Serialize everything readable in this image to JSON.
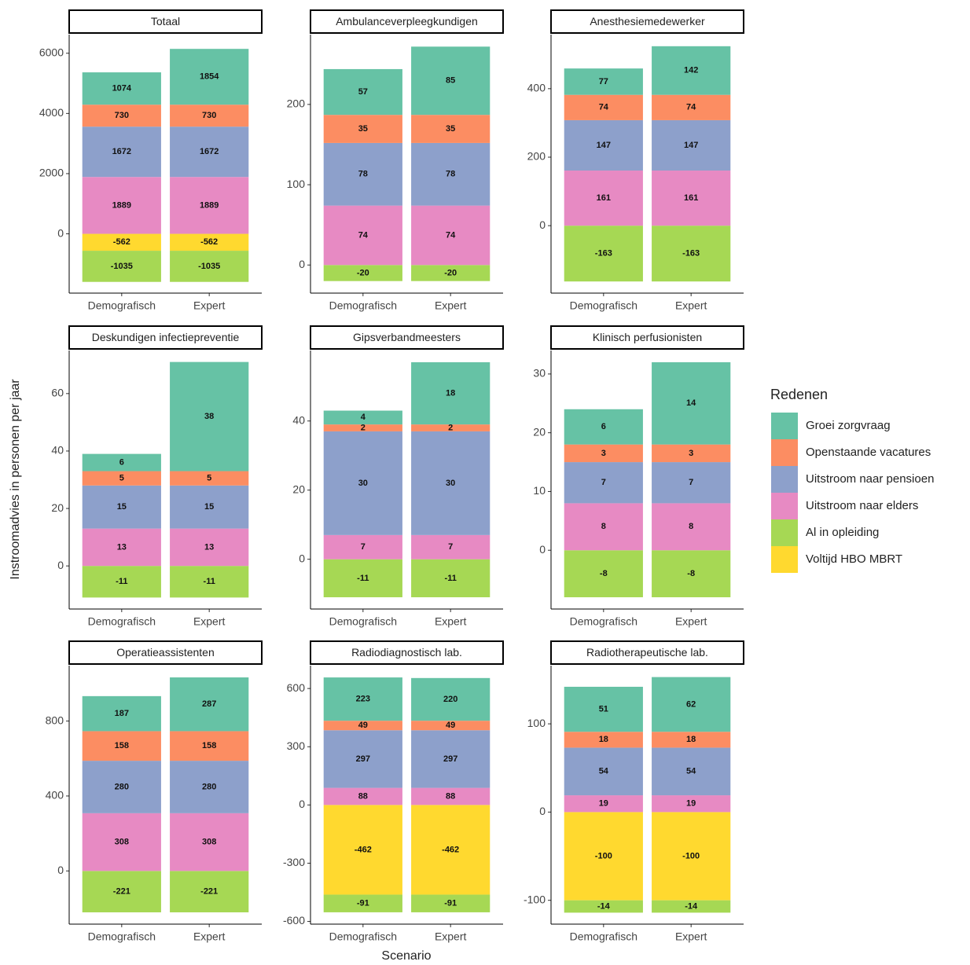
{
  "y_label": "Instroomadvies in personen per jaar",
  "x_label": "Scenario",
  "legend_title": "Redenen",
  "chart_data": [
    {
      "type": "bar",
      "stacked": true,
      "title": "Totaal",
      "categories": [
        "Demografisch",
        "Expert"
      ],
      "ylim": [
        -1970,
        6620
      ],
      "yticks": [
        0,
        2000,
        4000,
        6000
      ],
      "series": [
        {
          "name": "Groei zorgvraag",
          "color": "#66c2a5",
          "values": [
            1074,
            1854
          ]
        },
        {
          "name": "Openstaande vacatures",
          "color": "#fc8d62",
          "values": [
            730,
            730
          ]
        },
        {
          "name": "Uitstroom naar pensioen",
          "color": "#8da0cb",
          "values": [
            1672,
            1672
          ]
        },
        {
          "name": "Uitstroom naar elders",
          "color": "#e78ac3",
          "values": [
            1889,
            1889
          ]
        },
        {
          "name": "Al in opleiding",
          "color": "#a6d854",
          "values": [
            -1035,
            -1035
          ]
        },
        {
          "name": "Voltijd HBO MBRT",
          "color": "#ffd92f",
          "values": [
            -562,
            -562
          ]
        }
      ]
    },
    {
      "type": "bar",
      "stacked": true,
      "title": "Ambulanceverpleegkundigen",
      "categories": [
        "Demografisch",
        "Expert"
      ],
      "ylim": [
        -35,
        287
      ],
      "yticks": [
        0,
        100,
        200
      ],
      "series": [
        {
          "name": "Groei zorgvraag",
          "color": "#66c2a5",
          "values": [
            57,
            85
          ]
        },
        {
          "name": "Openstaande vacatures",
          "color": "#fc8d62",
          "values": [
            35,
            35
          ]
        },
        {
          "name": "Uitstroom naar pensioen",
          "color": "#8da0cb",
          "values": [
            78,
            78
          ]
        },
        {
          "name": "Uitstroom naar elders",
          "color": "#e78ac3",
          "values": [
            74,
            74
          ]
        },
        {
          "name": "Al in opleiding",
          "color": "#a6d854",
          "values": [
            -20,
            -20
          ]
        },
        {
          "name": "Voltijd HBO MBRT",
          "color": "#ffd92f",
          "values": [
            null,
            null
          ]
        }
      ]
    },
    {
      "type": "bar",
      "stacked": true,
      "title": "Anesthesiemedewerker",
      "categories": [
        "Demografisch",
        "Expert"
      ],
      "ylim": [
        -197,
        558
      ],
      "yticks": [
        0,
        200,
        400
      ],
      "series": [
        {
          "name": "Groei zorgvraag",
          "color": "#66c2a5",
          "values": [
            77,
            142
          ]
        },
        {
          "name": "Openstaande vacatures",
          "color": "#fc8d62",
          "values": [
            74,
            74
          ]
        },
        {
          "name": "Uitstroom naar pensioen",
          "color": "#8da0cb",
          "values": [
            147,
            147
          ]
        },
        {
          "name": "Uitstroom naar elders",
          "color": "#e78ac3",
          "values": [
            161,
            161
          ]
        },
        {
          "name": "Al in opleiding",
          "color": "#a6d854",
          "values": [
            -163,
            -163
          ]
        },
        {
          "name": "Voltijd HBO MBRT",
          "color": "#ffd92f",
          "values": [
            null,
            null
          ]
        }
      ]
    },
    {
      "type": "bar",
      "stacked": true,
      "title": "Deskundigen infectiepreventie",
      "categories": [
        "Demografisch",
        "Expert"
      ],
      "ylim": [
        -15,
        75
      ],
      "yticks": [
        0,
        20,
        40,
        60
      ],
      "series": [
        {
          "name": "Groei zorgvraag",
          "color": "#66c2a5",
          "values": [
            6,
            38
          ]
        },
        {
          "name": "Openstaande vacatures",
          "color": "#fc8d62",
          "values": [
            5,
            5
          ]
        },
        {
          "name": "Uitstroom naar pensioen",
          "color": "#8da0cb",
          "values": [
            15,
            15
          ]
        },
        {
          "name": "Uitstroom naar elders",
          "color": "#e78ac3",
          "values": [
            13,
            13
          ]
        },
        {
          "name": "Al in opleiding",
          "color": "#a6d854",
          "values": [
            -11,
            -11
          ]
        },
        {
          "name": "Voltijd HBO MBRT",
          "color": "#ffd92f",
          "values": [
            null,
            null
          ]
        }
      ]
    },
    {
      "type": "bar",
      "stacked": true,
      "title": "Gipsverbandmeesters",
      "categories": [
        "Demografisch",
        "Expert"
      ],
      "ylim": [
        -14.4,
        60.4
      ],
      "yticks": [
        0,
        20,
        40
      ],
      "series": [
        {
          "name": "Groei zorgvraag",
          "color": "#66c2a5",
          "values": [
            4,
            18
          ]
        },
        {
          "name": "Openstaande vacatures",
          "color": "#fc8d62",
          "values": [
            2,
            2
          ]
        },
        {
          "name": "Uitstroom naar pensioen",
          "color": "#8da0cb",
          "values": [
            30,
            30
          ]
        },
        {
          "name": "Uitstroom naar elders",
          "color": "#e78ac3",
          "values": [
            7,
            7
          ]
        },
        {
          "name": "Al in opleiding",
          "color": "#a6d854",
          "values": [
            -11,
            -11
          ]
        },
        {
          "name": "Voltijd HBO MBRT",
          "color": "#ffd92f",
          "values": [
            null,
            null
          ]
        }
      ]
    },
    {
      "type": "bar",
      "stacked": true,
      "title": "Klinisch perfusionisten",
      "categories": [
        "Demografisch",
        "Expert"
      ],
      "ylim": [
        -10,
        34
      ],
      "yticks": [
        0,
        10,
        20,
        30
      ],
      "series": [
        {
          "name": "Groei zorgvraag",
          "color": "#66c2a5",
          "values": [
            6,
            14
          ]
        },
        {
          "name": "Openstaande vacatures",
          "color": "#fc8d62",
          "values": [
            3,
            3
          ]
        },
        {
          "name": "Uitstroom naar pensioen",
          "color": "#8da0cb",
          "values": [
            7,
            7
          ]
        },
        {
          "name": "Uitstroom naar elders",
          "color": "#e78ac3",
          "values": [
            8,
            8
          ]
        },
        {
          "name": "Al in opleiding",
          "color": "#a6d854",
          "values": [
            -8,
            -8
          ]
        },
        {
          "name": "Voltijd HBO MBRT",
          "color": "#ffd92f",
          "values": [
            null,
            null
          ]
        }
      ]
    },
    {
      "type": "bar",
      "stacked": true,
      "title": "Operatieassistenten",
      "categories": [
        "Demografisch",
        "Expert"
      ],
      "ylim": [
        -284,
        1096
      ],
      "yticks": [
        0,
        400,
        800
      ],
      "series": [
        {
          "name": "Groei zorgvraag",
          "color": "#66c2a5",
          "values": [
            187,
            287
          ]
        },
        {
          "name": "Openstaande vacatures",
          "color": "#fc8d62",
          "values": [
            158,
            158
          ]
        },
        {
          "name": "Uitstroom naar pensioen",
          "color": "#8da0cb",
          "values": [
            280,
            280
          ]
        },
        {
          "name": "Uitstroom naar elders",
          "color": "#e78ac3",
          "values": [
            308,
            308
          ]
        },
        {
          "name": "Al in opleiding",
          "color": "#a6d854",
          "values": [
            -221,
            -221
          ]
        },
        {
          "name": "Voltijd HBO MBRT",
          "color": "#ffd92f",
          "values": [
            null,
            null
          ]
        }
      ]
    },
    {
      "type": "bar",
      "stacked": true,
      "title": "Radiodiagnostisch lab.",
      "categories": [
        "Demografisch",
        "Expert"
      ],
      "ylim": [
        -614,
        718
      ],
      "yticks": [
        -600,
        -300,
        0,
        300,
        600
      ],
      "series": [
        {
          "name": "Groei zorgvraag",
          "color": "#66c2a5",
          "values": [
            223,
            220
          ]
        },
        {
          "name": "Openstaande vacatures",
          "color": "#fc8d62",
          "values": [
            49,
            49
          ]
        },
        {
          "name": "Uitstroom naar pensioen",
          "color": "#8da0cb",
          "values": [
            297,
            297
          ]
        },
        {
          "name": "Uitstroom naar elders",
          "color": "#e78ac3",
          "values": [
            88,
            88
          ]
        },
        {
          "name": "Al in opleiding",
          "color": "#a6d854",
          "values": [
            -91,
            -91
          ]
        },
        {
          "name": "Voltijd HBO MBRT",
          "color": "#ffd92f",
          "values": [
            -462,
            -462
          ]
        }
      ]
    },
    {
      "type": "bar",
      "stacked": true,
      "title": "Radiotherapeutische lab.",
      "categories": [
        "Demografisch",
        "Expert"
      ],
      "ylim": [
        -127,
        166
      ],
      "yticks": [
        -100,
        0,
        100
      ],
      "series": [
        {
          "name": "Groei zorgvraag",
          "color": "#66c2a5",
          "values": [
            51,
            62
          ]
        },
        {
          "name": "Openstaande vacatures",
          "color": "#fc8d62",
          "values": [
            18,
            18
          ]
        },
        {
          "name": "Uitstroom naar pensioen",
          "color": "#8da0cb",
          "values": [
            54,
            54
          ]
        },
        {
          "name": "Uitstroom naar elders",
          "color": "#e78ac3",
          "values": [
            19,
            19
          ]
        },
        {
          "name": "Al in opleiding",
          "color": "#a6d854",
          "values": [
            -14,
            -14
          ]
        },
        {
          "name": "Voltijd HBO MBRT",
          "color": "#ffd92f",
          "values": [
            -100,
            -100
          ]
        }
      ]
    }
  ]
}
